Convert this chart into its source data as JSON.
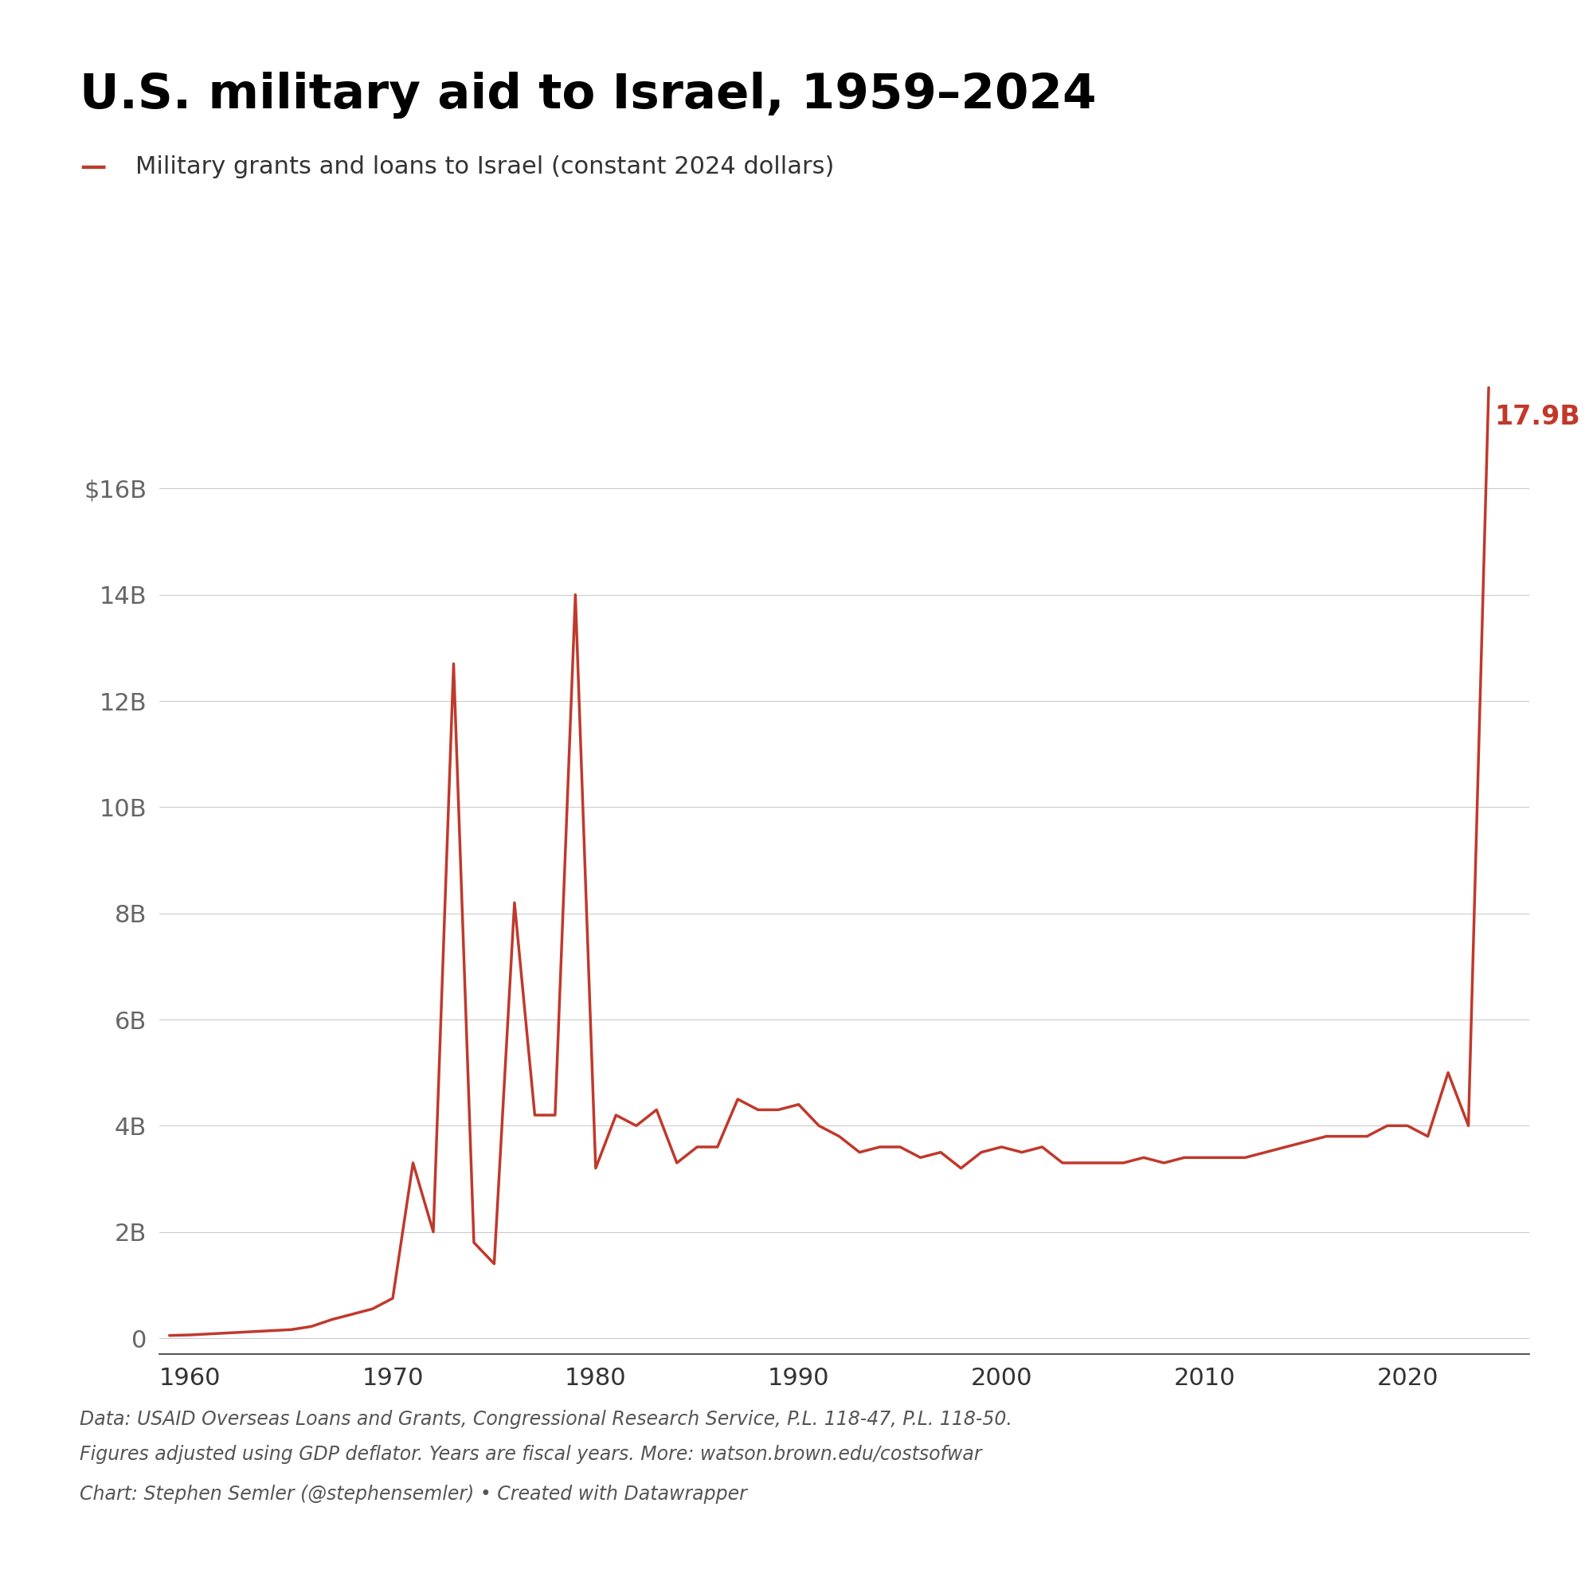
{
  "title": "U.S. military aid to Israel, 1959–2024",
  "legend_label": "Military grants and loans to Israel (constant 2024 dollars)",
  "line_color": "#C0392B",
  "annotation_text": "17.9B",
  "annotation_color": "#C0392B",
  "footnote_line1": "Data: USAID Overseas Loans and Grants, Congressional Research Service, P.L. 118-47, P.L. 118-50.",
  "footnote_line2": "Figures adjusted using GDP deflator. Years are fiscal years. More: watson.brown.edu/costsofwar",
  "footnote_line3": "Chart: Stephen Semler (@stephensemler) • Created with Datawrapper",
  "yticks": [
    0,
    2,
    4,
    6,
    8,
    10,
    12,
    14,
    16
  ],
  "ytick_labels": [
    "0",
    "2B",
    "4B",
    "6B",
    "8B",
    "10B",
    "12B",
    "14B",
    "$16B"
  ],
  "xticks": [
    1960,
    1970,
    1980,
    1990,
    2000,
    2010,
    2020
  ],
  "ylim": [
    -0.3,
    19.5
  ],
  "xlim": [
    1958.5,
    2026
  ],
  "years": [
    1959,
    1960,
    1961,
    1962,
    1963,
    1964,
    1965,
    1966,
    1967,
    1968,
    1969,
    1970,
    1971,
    1972,
    1973,
    1974,
    1975,
    1976,
    1977,
    1978,
    1979,
    1980,
    1981,
    1982,
    1983,
    1984,
    1985,
    1986,
    1987,
    1988,
    1989,
    1990,
    1991,
    1992,
    1993,
    1994,
    1995,
    1996,
    1997,
    1998,
    1999,
    2000,
    2001,
    2002,
    2003,
    2004,
    2005,
    2006,
    2007,
    2008,
    2009,
    2010,
    2011,
    2012,
    2013,
    2014,
    2015,
    2016,
    2017,
    2018,
    2019,
    2020,
    2021,
    2022,
    2023,
    2024
  ],
  "values": [
    0.05,
    0.06,
    0.08,
    0.1,
    0.12,
    0.14,
    0.16,
    0.22,
    0.35,
    0.45,
    0.55,
    0.75,
    3.3,
    2.0,
    12.7,
    1.8,
    1.4,
    8.2,
    4.2,
    4.2,
    14.0,
    3.2,
    4.2,
    4.0,
    4.3,
    3.3,
    3.6,
    3.6,
    4.5,
    4.3,
    4.3,
    4.4,
    4.0,
    3.8,
    3.5,
    3.6,
    3.6,
    3.4,
    3.5,
    3.2,
    3.5,
    3.6,
    3.5,
    3.6,
    3.3,
    3.3,
    3.3,
    3.3,
    3.4,
    3.3,
    3.4,
    3.4,
    3.4,
    3.4,
    3.5,
    3.6,
    3.7,
    3.8,
    3.8,
    3.8,
    4.0,
    4.0,
    3.8,
    5.0,
    4.0,
    17.9
  ]
}
